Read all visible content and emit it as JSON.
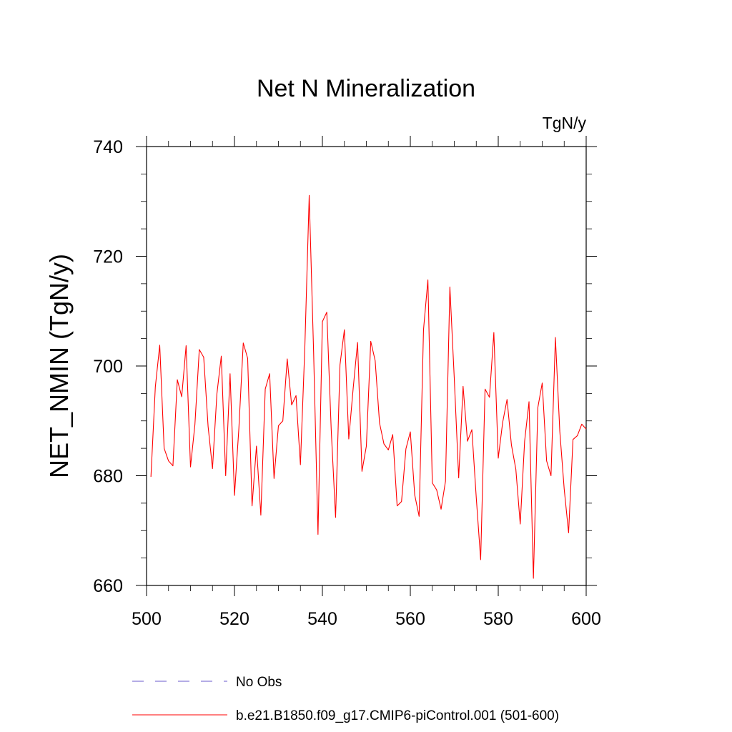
{
  "chart_data": {
    "type": "line",
    "title": "Net N Mineralization",
    "units": "TgN/y",
    "xlabel": "",
    "ylabel": "NET_NMIN  (TgN/y)",
    "xlim": [
      500,
      600
    ],
    "ylim": [
      660,
      740
    ],
    "xticks": [
      500,
      520,
      540,
      560,
      580,
      600
    ],
    "yticks": [
      660,
      680,
      700,
      720,
      740
    ],
    "x_minor_step": 5,
    "y_minor_step": 5,
    "grid": false,
    "legend_position": "bottom",
    "series": [
      {
        "name": "No Obs",
        "color": "#6a5acd",
        "style": "dashed",
        "x": [],
        "values": []
      },
      {
        "name": "b.e21.B1850.f09_g17.CMIP6-piControl.001 (501-600)",
        "color": "#ff0000",
        "style": "solid",
        "x": [
          501,
          502,
          503,
          504,
          505,
          506,
          507,
          508,
          509,
          510,
          511,
          512,
          513,
          514,
          515,
          516,
          517,
          518,
          519,
          520,
          521,
          522,
          523,
          524,
          525,
          526,
          527,
          528,
          529,
          530,
          531,
          532,
          533,
          534,
          535,
          536,
          537,
          538,
          539,
          540,
          541,
          542,
          543,
          544,
          545,
          546,
          547,
          548,
          549,
          550,
          551,
          552,
          553,
          554,
          555,
          556,
          557,
          558,
          559,
          560,
          561,
          562,
          563,
          564,
          565,
          566,
          567,
          568,
          569,
          570,
          571,
          572,
          573,
          574,
          575,
          576,
          577,
          578,
          579,
          580,
          581,
          582,
          583,
          584,
          585,
          586,
          587,
          588,
          589,
          590,
          591,
          592,
          593,
          594,
          595,
          596,
          597,
          598,
          599,
          600
        ],
        "values": [
          679.8,
          696.2,
          703.8,
          685.0,
          682.7,
          681.8,
          697.5,
          694.4,
          703.7,
          681.6,
          689.3,
          703.0,
          701.6,
          689.0,
          681.3,
          694.9,
          701.8,
          680.0,
          698.6,
          676.4,
          688.6,
          704.2,
          701.4,
          674.5,
          685.4,
          672.8,
          695.8,
          698.6,
          679.5,
          689.1,
          690.0,
          701.3,
          692.9,
          694.6,
          682.0,
          703.3,
          731.1,
          702.6,
          669.3,
          708.1,
          709.8,
          688.5,
          672.4,
          700.2,
          706.6,
          686.7,
          695.9,
          704.3,
          680.8,
          685.4,
          704.5,
          701.0,
          689.6,
          685.8,
          684.7,
          687.5,
          674.5,
          675.3,
          684.9,
          688.0,
          676.5,
          672.6,
          706.6,
          715.7,
          678.7,
          677.4,
          673.9,
          679.0,
          714.4,
          697.7,
          679.6,
          696.3,
          686.3,
          688.4,
          676.0,
          664.7,
          695.8,
          694.3,
          706.1,
          683.2,
          689.7,
          693.9,
          685.6,
          681.2,
          671.2,
          686.3,
          693.5,
          661.3,
          692.4,
          696.9,
          682.7,
          680.0,
          705.2,
          688.1,
          677.6,
          669.6,
          686.6,
          687.3,
          689.4,
          688.5
        ]
      }
    ]
  }
}
